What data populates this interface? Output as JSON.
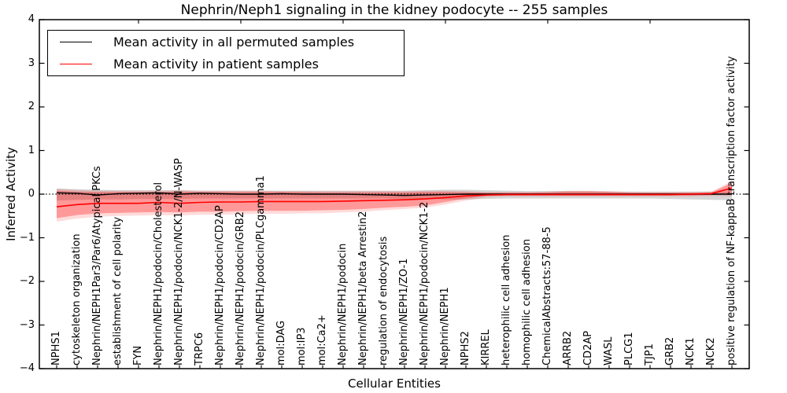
{
  "title": "Nephrin/Neph1 signaling in the kidney podocyte -- 255 samples",
  "axes": {
    "x_label": "Cellular Entities",
    "y_label": "Inferred Activity",
    "y_tick_labels": [
      "4",
      "3",
      "2",
      "1",
      "0",
      "−1",
      "−2",
      "−3",
      "−4"
    ],
    "y_tick_values": [
      4,
      3,
      2,
      1,
      0,
      -1,
      -2,
      -3,
      -4
    ]
  },
  "legend": [
    {
      "label": "Mean activity in all permuted samples",
      "color": "#000000"
    },
    {
      "label": "Mean activity in patient samples",
      "color": "#ff0000"
    }
  ],
  "chart_data": {
    "type": "line",
    "title": "Nephrin/Neph1 signaling in the kidney podocyte -- 255 samples",
    "xlabel": "Cellular Entities",
    "ylabel": "Inferred Activity",
    "ylim": [
      -4,
      4
    ],
    "grid": false,
    "legend_position": "upper left",
    "zero_line": true,
    "categories": [
      "NPHS1",
      "cytoskeleton organization",
      "Nephrin/NEPH1Par3/Par6/Atypical PKCs",
      "establishment of cell polarity",
      "FYN",
      "Nephrin/NEPH1/podocin/Cholesterol",
      "Nephrin/NEPH1/podocin/NCK1-2/N-WASP",
      "TRPC6",
      "Nephrin/NEPH1/podocin/CD2AP",
      "Nephrin/NEPH1/podocin/GRB2",
      "Nephrin/NEPH1/podocin/PLCgamma1",
      "mol:DAG",
      "mol:IP3",
      "mol:Ca2+",
      "Nephrin/NEPH1/podocin",
      "Nephrin/NEPH1/beta Arrestin2",
      "regulation of endocytosis",
      "Nephrin/NEPH1/ZO-1",
      "Nephrin/NEPH1/podocin/NCK1-2",
      "Nephrin/NEPH1",
      "NPHS2",
      "KIRREL",
      "heterophilic cell adhesion",
      "homophilic cell adhesion",
      "ChemicalAbstracts:57-88-5",
      "ARRB2",
      "CD2AP",
      "WASL",
      "PLCG1",
      "TJP1",
      "GRB2",
      "NCK1",
      "NCK2",
      "positive regulation of NF-kappaB transcription factor activity"
    ],
    "series": [
      {
        "name": "Mean activity in all permuted samples",
        "color": "#000000",
        "width": 1.4,
        "values": [
          0.03,
          0.02,
          -0.02,
          0.01,
          0.02,
          0.03,
          0.0,
          0.02,
          0.01,
          0.0,
          0.0,
          0.01,
          0.0,
          0.0,
          0.0,
          -0.01,
          -0.02,
          -0.03,
          -0.02,
          -0.01,
          0.0,
          0.0,
          0.0,
          0.0,
          0.0,
          0.0,
          0.0,
          0.0,
          0.0,
          0.0,
          0.0,
          0.0,
          0.0,
          0.0
        ]
      },
      {
        "name": "Mean activity in patient samples",
        "color": "#ff0000",
        "width": 1.6,
        "values": [
          -0.29,
          -0.24,
          -0.21,
          -0.21,
          -0.21,
          -0.19,
          -0.21,
          -0.19,
          -0.18,
          -0.18,
          -0.17,
          -0.17,
          -0.17,
          -0.17,
          -0.16,
          -0.15,
          -0.14,
          -0.13,
          -0.11,
          -0.08,
          -0.04,
          -0.02,
          -0.01,
          -0.01,
          -0.01,
          -0.01,
          -0.01,
          -0.01,
          -0.01,
          -0.01,
          -0.01,
          0.0,
          0.01,
          0.14
        ]
      }
    ],
    "bands": [
      {
        "name": "permuted-range",
        "color": "rgba(0,0,0,0.16)",
        "high": [
          0.13,
          0.11,
          0.1,
          0.09,
          0.09,
          0.09,
          0.09,
          0.08,
          0.08,
          0.08,
          0.08,
          0.08,
          0.08,
          0.08,
          0.08,
          0.08,
          0.08,
          0.08,
          0.09,
          0.1,
          0.1,
          0.09,
          0.08,
          0.07,
          0.07,
          0.07,
          0.07,
          0.06,
          0.06,
          0.06,
          0.06,
          0.06,
          0.06,
          0.06
        ],
        "low": [
          -0.15,
          -0.13,
          -0.12,
          -0.12,
          -0.11,
          -0.11,
          -0.11,
          -0.1,
          -0.1,
          -0.1,
          -0.1,
          -0.1,
          -0.1,
          -0.1,
          -0.1,
          -0.1,
          -0.1,
          -0.11,
          -0.11,
          -0.12,
          -0.12,
          -0.11,
          -0.1,
          -0.1,
          -0.1,
          -0.1,
          -0.1,
          -0.1,
          -0.1,
          -0.1,
          -0.11,
          -0.12,
          -0.13,
          -0.14
        ]
      },
      {
        "name": "patient-range-outer",
        "color": "rgba(255,0,0,0.14)",
        "high": [
          0.12,
          0.1,
          0.08,
          0.08,
          0.08,
          0.08,
          0.09,
          0.08,
          0.08,
          0.08,
          0.08,
          0.07,
          0.07,
          0.07,
          0.07,
          0.07,
          0.07,
          0.07,
          0.08,
          0.08,
          0.07,
          0.05,
          0.05,
          0.05,
          0.06,
          0.08,
          0.08,
          0.07,
          0.05,
          0.04,
          0.04,
          0.05,
          0.06,
          0.3
        ],
        "low": [
          -0.63,
          -0.56,
          -0.52,
          -0.5,
          -0.49,
          -0.48,
          -0.49,
          -0.47,
          -0.47,
          -0.46,
          -0.45,
          -0.45,
          -0.44,
          -0.44,
          -0.42,
          -0.4,
          -0.37,
          -0.34,
          -0.31,
          -0.24,
          -0.15,
          -0.07,
          -0.05,
          -0.05,
          -0.05,
          -0.05,
          -0.05,
          -0.05,
          -0.05,
          -0.05,
          -0.05,
          -0.05,
          -0.04,
          -0.05
        ]
      },
      {
        "name": "patient-range-inner",
        "color": "rgba(255,0,0,0.30)",
        "high": [
          0.08,
          0.06,
          0.05,
          0.05,
          0.05,
          0.05,
          0.06,
          0.05,
          0.05,
          0.05,
          0.05,
          0.05,
          0.05,
          0.04,
          0.04,
          0.04,
          0.04,
          0.04,
          0.05,
          0.05,
          0.04,
          0.03,
          0.03,
          0.03,
          0.04,
          0.06,
          0.06,
          0.05,
          0.03,
          0.03,
          0.03,
          0.03,
          0.04,
          0.26
        ],
        "low": [
          -0.55,
          -0.48,
          -0.44,
          -0.43,
          -0.42,
          -0.41,
          -0.42,
          -0.4,
          -0.4,
          -0.39,
          -0.38,
          -0.38,
          -0.38,
          -0.37,
          -0.36,
          -0.34,
          -0.31,
          -0.29,
          -0.26,
          -0.18,
          -0.1,
          -0.04,
          -0.03,
          -0.03,
          -0.03,
          -0.03,
          -0.03,
          -0.03,
          -0.03,
          -0.03,
          -0.03,
          -0.03,
          -0.02,
          0.0
        ]
      }
    ]
  }
}
